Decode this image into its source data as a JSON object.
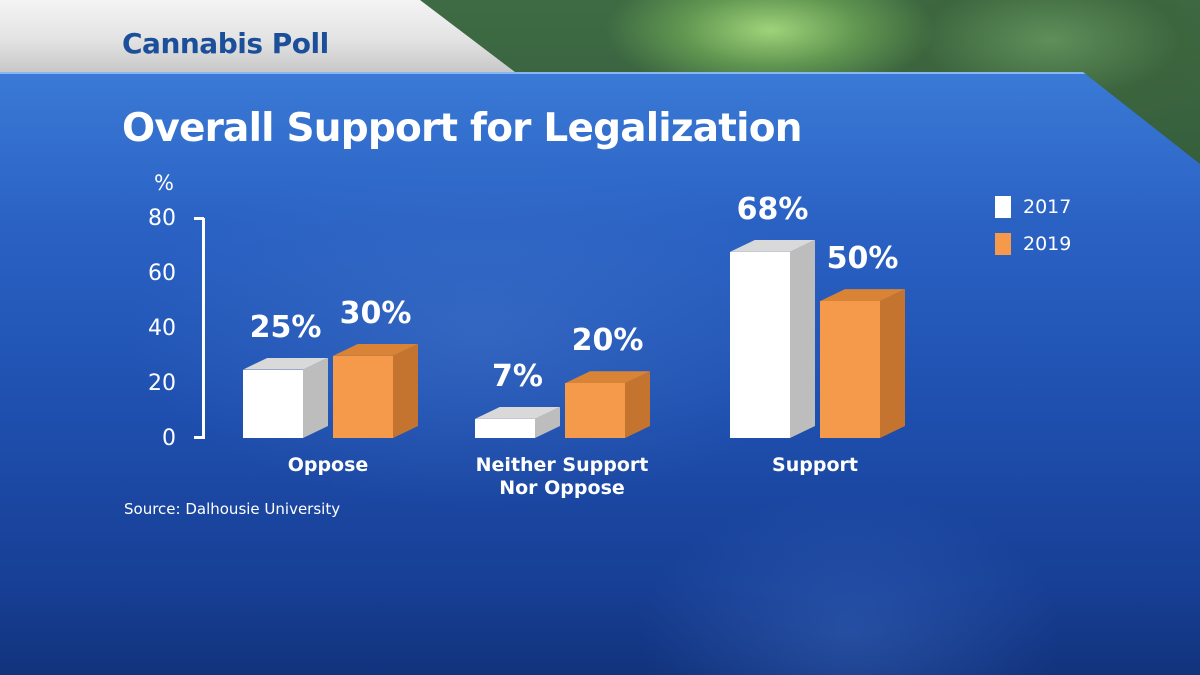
{
  "header": {
    "tab_title": "Cannabis Poll",
    "main_title": "Overall Support for Legalization"
  },
  "source": "Source: Dalhousie University",
  "colors": {
    "series_2017": "#ffffff",
    "series_2017_side": "#bdbdbd",
    "series_2019": "#f5994a",
    "series_2019_side": "#c57430",
    "panel_blue": "#2a62c4",
    "tab_text": "#1c4f9a"
  },
  "axis": {
    "unit": "%",
    "ticks": [
      "80",
      "60",
      "40",
      "20",
      "0"
    ]
  },
  "legend": [
    {
      "label": "2017",
      "color": "#ffffff"
    },
    {
      "label": "2019",
      "color": "#f5994a"
    }
  ],
  "groups": [
    {
      "category": "Oppose",
      "values": [
        {
          "series": "2017",
          "value": 25,
          "label": "25%"
        },
        {
          "series": "2019",
          "value": 30,
          "label": "30%"
        }
      ]
    },
    {
      "category": "Neither Support Nor Oppose",
      "category_line1": "Neither Support",
      "category_line2": "Nor Oppose",
      "values": [
        {
          "series": "2017",
          "value": 7,
          "label": "7%"
        },
        {
          "series": "2019",
          "value": 20,
          "label": "20%"
        }
      ]
    },
    {
      "category": "Support",
      "values": [
        {
          "series": "2017",
          "value": 68,
          "label": "68%"
        },
        {
          "series": "2019",
          "value": 50,
          "label": "50%"
        }
      ]
    }
  ],
  "chart_data": {
    "type": "bar",
    "title": "Overall Support for Legalization",
    "subtitle": "Cannabis Poll",
    "categories": [
      "Oppose",
      "Neither Support Nor Oppose",
      "Support"
    ],
    "series": [
      {
        "name": "2017",
        "values": [
          25,
          7,
          68
        ],
        "color": "#ffffff"
      },
      {
        "name": "2019",
        "values": [
          30,
          20,
          50
        ],
        "color": "#f5994a"
      }
    ],
    "xlabel": "",
    "ylabel": "%",
    "ylim": [
      0,
      80
    ],
    "yticks": [
      0,
      20,
      40,
      60,
      80
    ],
    "grid": false,
    "legend_position": "top-right",
    "data_labels": true,
    "style": "3d-columns",
    "annotations": [
      "Source: Dalhousie University"
    ]
  }
}
